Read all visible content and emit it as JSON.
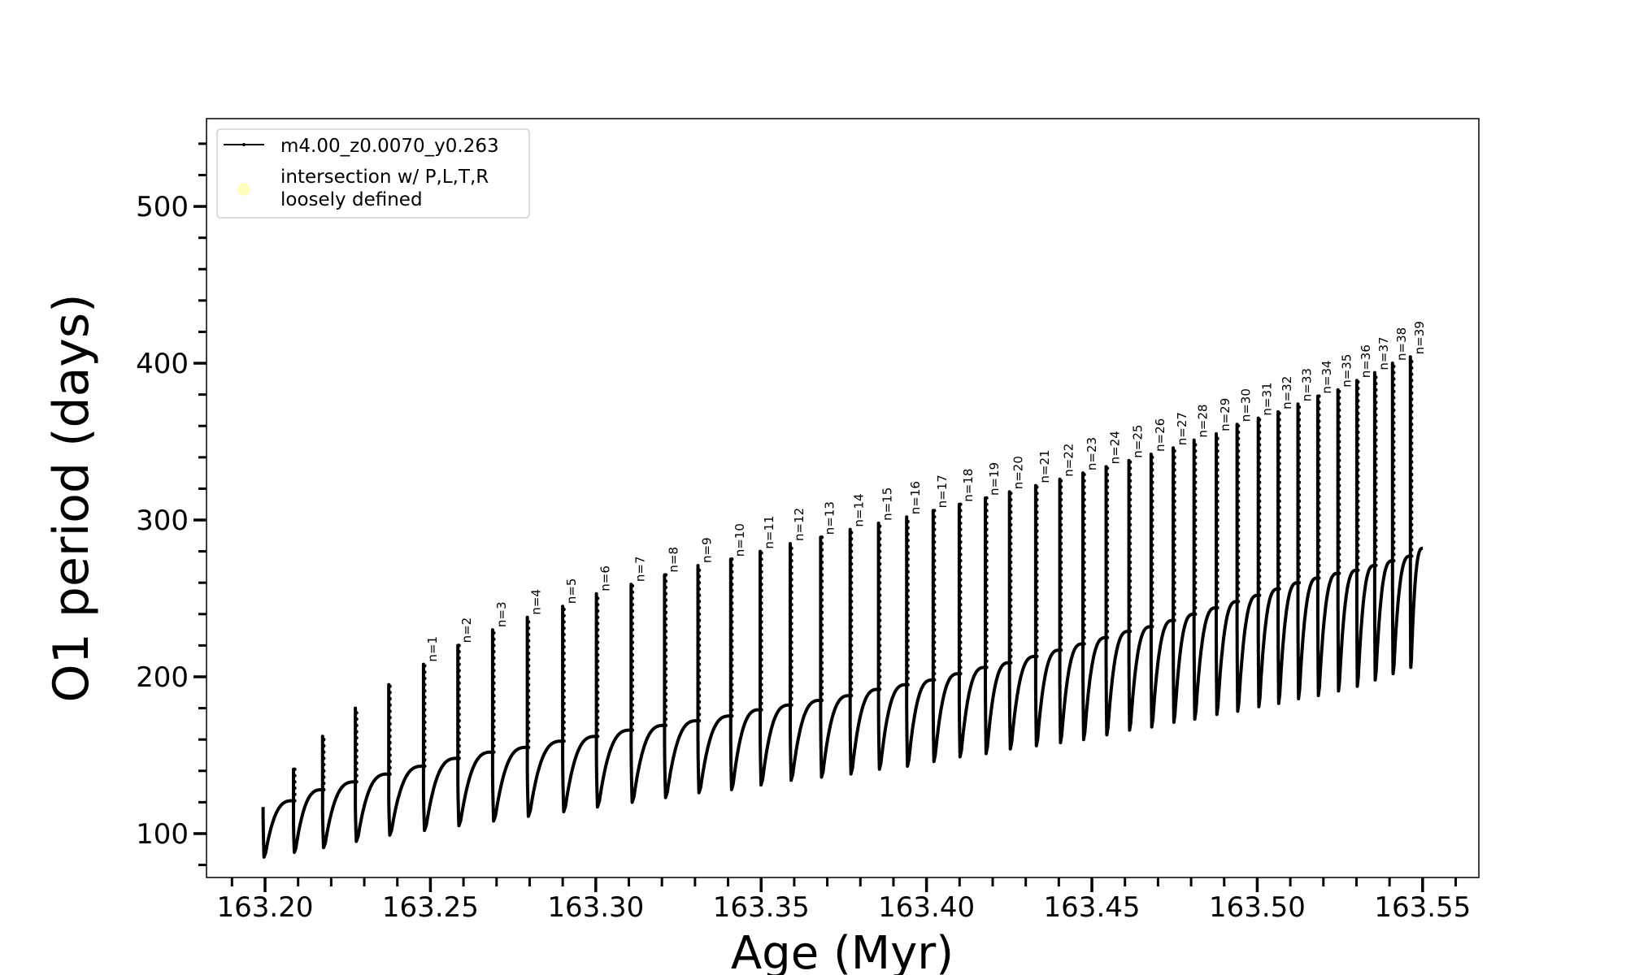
{
  "chart_data": {
    "type": "line",
    "title": "",
    "xlabel": "Age (Myr)",
    "ylabel": "O1 period (days)",
    "xlim": [
      163.1823,
      163.567
    ],
    "ylim": [
      72,
      556
    ],
    "x_ticks": [
      "163.20",
      "163.25",
      "163.30",
      "163.35",
      "163.40",
      "163.45",
      "163.50",
      "163.55"
    ],
    "x_minor_step": 0.01,
    "y_ticks": [
      "100",
      "200",
      "300",
      "400",
      "500"
    ],
    "y_minor_step": 20,
    "grid": false,
    "legend": {
      "placement": "upper-left",
      "entries": [
        {
          "label": "m4.00_z0.0070_y0.263",
          "marker": "line-with-dots",
          "color": "#000000"
        },
        {
          "label_line1": "intersection w/ P,L,T,R",
          "label_line2": "loosely defined",
          "marker": "circle",
          "color": "#ffffc0"
        }
      ]
    },
    "series_color": "#000000",
    "start": {
      "x": 163.1994,
      "y": 117,
      "min": 85
    },
    "end": {
      "x": 163.5501,
      "y": 282
    },
    "pulses": [
      {
        "label": "",
        "x": 163.2086,
        "plateau": 121,
        "peak": 141,
        "min": 88
      },
      {
        "label": "",
        "x": 163.2174,
        "plateau": 128,
        "peak": 162,
        "min": 91
      },
      {
        "label": "",
        "x": 163.2273,
        "plateau": 133,
        "peak": 180,
        "min": 95
      },
      {
        "label": "",
        "x": 163.2374,
        "plateau": 138,
        "peak": 195,
        "min": 99
      },
      {
        "label": "n=1",
        "x": 163.2479,
        "plateau": 143,
        "peak": 208,
        "min": 102
      },
      {
        "label": "n=2",
        "x": 163.2583,
        "plateau": 148,
        "peak": 220,
        "min": 105
      },
      {
        "label": "n=3",
        "x": 163.2688,
        "plateau": 152,
        "peak": 230,
        "min": 108
      },
      {
        "label": "n=4",
        "x": 163.2793,
        "plateau": 155,
        "peak": 238,
        "min": 111
      },
      {
        "label": "n=5",
        "x": 163.29,
        "plateau": 159,
        "peak": 245,
        "min": 114
      },
      {
        "label": "n=6",
        "x": 163.3002,
        "plateau": 162,
        "peak": 253,
        "min": 117
      },
      {
        "label": "n=7",
        "x": 163.3107,
        "plateau": 166,
        "peak": 259,
        "min": 120
      },
      {
        "label": "n=8",
        "x": 163.3208,
        "plateau": 169,
        "peak": 265,
        "min": 123
      },
      {
        "label": "n=9",
        "x": 163.3309,
        "plateau": 172,
        "peak": 271,
        "min": 126
      },
      {
        "label": "n=10",
        "x": 163.3408,
        "plateau": 175,
        "peak": 275,
        "min": 128
      },
      {
        "label": "n=11",
        "x": 163.3497,
        "plateau": 179,
        "peak": 280,
        "min": 131
      },
      {
        "label": "n=12",
        "x": 163.3588,
        "plateau": 182,
        "peak": 285,
        "min": 134
      },
      {
        "label": "n=13",
        "x": 163.368,
        "plateau": 185,
        "peak": 289,
        "min": 136
      },
      {
        "label": "n=14",
        "x": 163.3769,
        "plateau": 188,
        "peak": 294,
        "min": 138
      },
      {
        "label": "n=15",
        "x": 163.3855,
        "plateau": 192,
        "peak": 298,
        "min": 141
      },
      {
        "label": "n=16",
        "x": 163.394,
        "plateau": 195,
        "peak": 302,
        "min": 143
      },
      {
        "label": "n=17",
        "x": 163.402,
        "plateau": 198,
        "peak": 306,
        "min": 146
      },
      {
        "label": "n=18",
        "x": 163.4099,
        "plateau": 202,
        "peak": 310,
        "min": 149
      },
      {
        "label": "n=19",
        "x": 163.4178,
        "plateau": 206,
        "peak": 314,
        "min": 151
      },
      {
        "label": "n=20",
        "x": 163.4251,
        "plateau": 209,
        "peak": 318,
        "min": 154
      },
      {
        "label": "n=21",
        "x": 163.433,
        "plateau": 213,
        "peak": 322,
        "min": 156
      },
      {
        "label": "n=22",
        "x": 163.4403,
        "plateau": 217,
        "peak": 326,
        "min": 158
      },
      {
        "label": "n=23",
        "x": 163.4473,
        "plateau": 221,
        "peak": 330,
        "min": 160
      },
      {
        "label": "n=24",
        "x": 163.4543,
        "plateau": 225,
        "peak": 334,
        "min": 163
      },
      {
        "label": "n=25",
        "x": 163.4612,
        "plateau": 229,
        "peak": 338,
        "min": 166
      },
      {
        "label": "n=26",
        "x": 163.4679,
        "plateau": 232,
        "peak": 342,
        "min": 168
      },
      {
        "label": "n=27",
        "x": 163.4746,
        "plateau": 236,
        "peak": 346,
        "min": 171
      },
      {
        "label": "n=28",
        "x": 163.4809,
        "plateau": 240,
        "peak": 351,
        "min": 173
      },
      {
        "label": "n=29",
        "x": 163.4876,
        "plateau": 244,
        "peak": 355,
        "min": 176
      },
      {
        "label": "n=30",
        "x": 163.4939,
        "plateau": 248,
        "peak": 361,
        "min": 178
      },
      {
        "label": "n=31",
        "x": 163.5003,
        "plateau": 252,
        "peak": 365,
        "min": 181
      },
      {
        "label": "n=32",
        "x": 163.5063,
        "plateau": 256,
        "peak": 369,
        "min": 183
      },
      {
        "label": "n=33",
        "x": 163.5123,
        "plateau": 260,
        "peak": 374,
        "min": 186
      },
      {
        "label": "n=34",
        "x": 163.5183,
        "plateau": 263,
        "peak": 379,
        "min": 188
      },
      {
        "label": "n=35",
        "x": 163.5244,
        "plateau": 266,
        "peak": 383,
        "min": 191
      },
      {
        "label": "n=36",
        "x": 163.5301,
        "plateau": 268,
        "peak": 389,
        "min": 194
      },
      {
        "label": "n=37",
        "x": 163.5355,
        "plateau": 271,
        "peak": 394,
        "min": 198
      },
      {
        "label": "n=38",
        "x": 163.5409,
        "plateau": 274,
        "peak": 400,
        "min": 202
      },
      {
        "label": "n=39",
        "x": 163.5463,
        "plateau": 277,
        "peak": 404,
        "min": 206
      }
    ]
  }
}
